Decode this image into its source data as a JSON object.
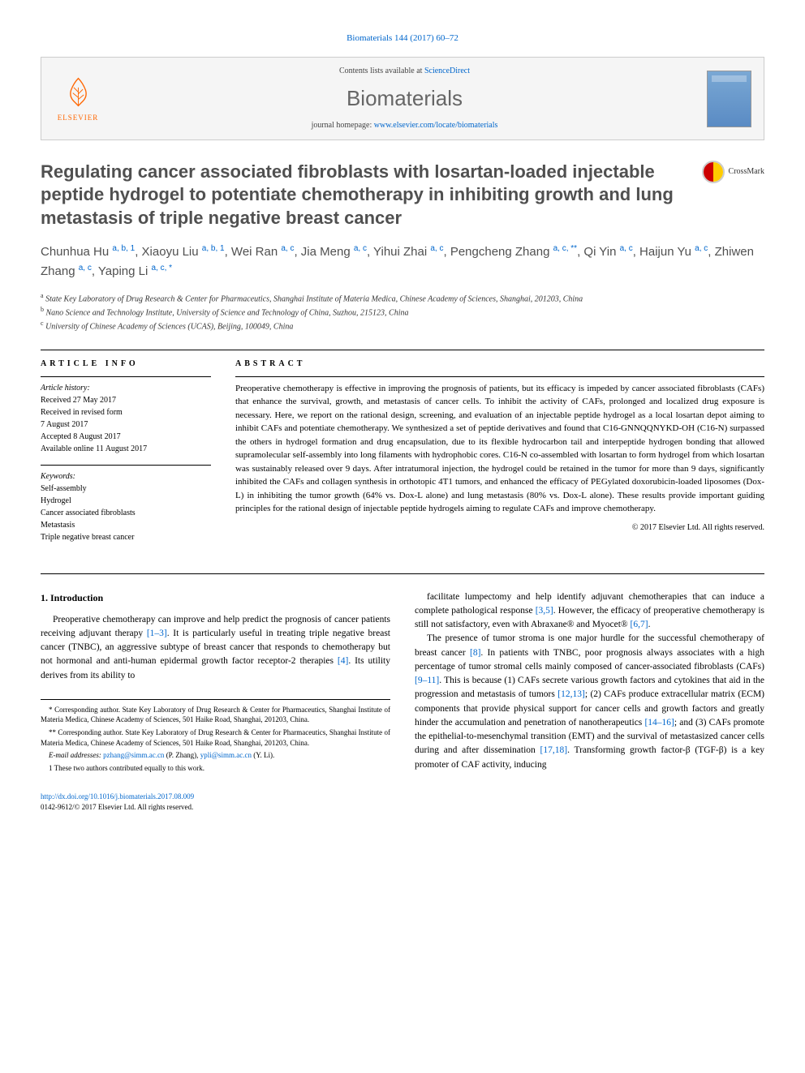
{
  "citation": "Biomaterials 144 (2017) 60–72",
  "header": {
    "contents_prefix": "Contents lists available at ",
    "contents_link": "ScienceDirect",
    "journal": "Biomaterials",
    "homepage_prefix": "journal homepage: ",
    "homepage_url": "www.elsevier.com/locate/biomaterials",
    "publisher": "ELSEVIER",
    "crossmark": "CrossMark"
  },
  "title": "Regulating cancer associated fibroblasts with losartan-loaded injectable peptide hydrogel to potentiate chemotherapy in inhibiting growth and lung metastasis of triple negative breast cancer",
  "authors_html": "Chunhua Hu <sup>a, b, 1</sup>, Xiaoyu Liu <sup>a, b, 1</sup>, Wei Ran <sup>a, c</sup>, Jia Meng <sup>a, c</sup>, Yihui Zhai <sup>a, c</sup>, Pengcheng Zhang <sup>a, c, **</sup>, Qi Yin <sup>a, c</sup>, Haijun Yu <sup>a, c</sup>, Zhiwen Zhang <sup>a, c</sup>, Yaping Li <sup>a, c, *</sup>",
  "affiliations": [
    {
      "sup": "a",
      "text": "State Key Laboratory of Drug Research & Center for Pharmaceutics, Shanghai Institute of Materia Medica, Chinese Academy of Sciences, Shanghai, 201203, China"
    },
    {
      "sup": "b",
      "text": "Nano Science and Technology Institute, University of Science and Technology of China, Suzhou, 215123, China"
    },
    {
      "sup": "c",
      "text": "University of Chinese Academy of Sciences (UCAS), Beijing, 100049, China"
    }
  ],
  "article_info": {
    "label": "ARTICLE INFO",
    "history_label": "Article history:",
    "history": [
      "Received 27 May 2017",
      "Received in revised form",
      "7 August 2017",
      "Accepted 8 August 2017",
      "Available online 11 August 2017"
    ],
    "keywords_label": "Keywords:",
    "keywords": [
      "Self-assembly",
      "Hydrogel",
      "Cancer associated fibroblasts",
      "Metastasis",
      "Triple negative breast cancer"
    ]
  },
  "abstract": {
    "label": "ABSTRACT",
    "text": "Preoperative chemotherapy is effective in improving the prognosis of patients, but its efficacy is impeded by cancer associated fibroblasts (CAFs) that enhance the survival, growth, and metastasis of cancer cells. To inhibit the activity of CAFs, prolonged and localized drug exposure is necessary. Here, we report on the rational design, screening, and evaluation of an injectable peptide hydrogel as a local losartan depot aiming to inhibit CAFs and potentiate chemotherapy. We synthesized a set of peptide derivatives and found that C16-GNNQQNYKD-OH (C16-N) surpassed the others in hydrogel formation and drug encapsulation, due to its flexible hydrocarbon tail and interpeptide hydrogen bonding that allowed supramolecular self-assembly into long filaments with hydrophobic cores. C16-N co-assembled with losartan to form hydrogel from which losartan was sustainably released over 9 days. After intratumoral injection, the hydrogel could be retained in the tumor for more than 9 days, significantly inhibited the CAFs and collagen synthesis in orthotopic 4T1 tumors, and enhanced the efficacy of PEGylated doxorubicin-loaded liposomes (Dox-L) in inhibiting the tumor growth (64% vs. Dox-L alone) and lung metastasis (80% vs. Dox-L alone). These results provide important guiding principles for the rational design of injectable peptide hydrogels aiming to regulate CAFs and improve chemotherapy.",
    "copyright": "© 2017 Elsevier Ltd. All rights reserved."
  },
  "body": {
    "section_heading": "1. Introduction",
    "col1_p1": "Preoperative chemotherapy can improve and help predict the prognosis of cancer patients receiving adjuvant therapy [1–3]. It is particularly useful in treating triple negative breast cancer (TNBC), an aggressive subtype of breast cancer that responds to chemotherapy but not hormonal and anti-human epidermal growth factor receptor-2 therapies [4]. Its utility derives from its ability to",
    "col2_p1": "facilitate lumpectomy and help identify adjuvant chemotherapies that can induce a complete pathological response [3,5]. However, the efficacy of preoperative chemotherapy is still not satisfactory, even with Abraxane® and Myocet® [6,7].",
    "col2_p2": "The presence of tumor stroma is one major hurdle for the successful chemotherapy of breast cancer [8]. In patients with TNBC, poor prognosis always associates with a high percentage of tumor stromal cells mainly composed of cancer-associated fibroblasts (CAFs) [9–11]. This is because (1) CAFs secrete various growth factors and cytokines that aid in the progression and metastasis of tumors [12,13]; (2) CAFs produce extracellular matrix (ECM) components that provide physical support for cancer cells and growth factors and greatly hinder the accumulation and penetration of nanotherapeutics [14–16]; and (3) CAFs promote the epithelial-to-mesenchymal transition (EMT) and the survival of metastasized cancer cells during and after dissemination [17,18]. Transforming growth factor-β (TGF-β) is a key promoter of CAF activity, inducing"
  },
  "footnotes": {
    "corr1": "* Corresponding author. State Key Laboratory of Drug Research & Center for Pharmaceutics, Shanghai Institute of Materia Medica, Chinese Academy of Sciences, 501 Haike Road, Shanghai, 201203, China.",
    "corr2": "** Corresponding author. State Key Laboratory of Drug Research & Center for Pharmaceutics, Shanghai Institute of Materia Medica, Chinese Academy of Sciences, 501 Haike Road, Shanghai, 201203, China.",
    "email_label": "E-mail addresses: ",
    "email1": "pzhang@simm.ac.cn",
    "email1_suffix": " (P. Zhang), ",
    "email2": "ypli@simm.ac.cn",
    "email2_suffix": " (Y. Li).",
    "note1": "1 These two authors contributed equally to this work."
  },
  "footer": {
    "doi": "http://dx.doi.org/10.1016/j.biomaterials.2017.08.009",
    "issn_copyright": "0142-9612/© 2017 Elsevier Ltd. All rights reserved."
  },
  "colors": {
    "link": "#0066cc",
    "title_gray": "#505050",
    "elsevier_orange": "#ff6600"
  }
}
